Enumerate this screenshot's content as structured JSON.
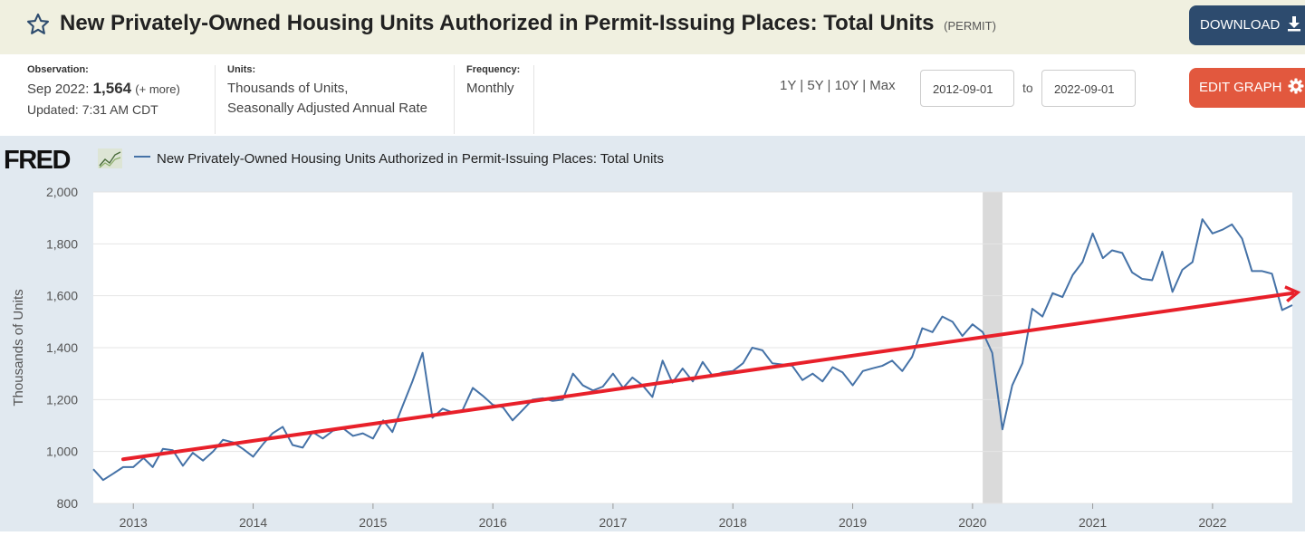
{
  "header": {
    "title": "New Privately-Owned Housing Units Authorized in Permit-Issuing Places: Total Units",
    "series_code": "(PERMIT)",
    "download_label": "DOWNLOAD",
    "edit_label": "EDIT GRAPH"
  },
  "observation": {
    "label": "Observation:",
    "date": "Sep 2022:",
    "value": "1,564",
    "more": "(+ more)",
    "updated": "Updated: 7:31 AM CDT"
  },
  "units": {
    "label": "Units:",
    "line1": "Thousands of Units,",
    "line2": "Seasonally Adjusted Annual Rate"
  },
  "frequency": {
    "label": "Frequency:",
    "value": "Monthly"
  },
  "range": {
    "options": [
      "1Y",
      "5Y",
      "10Y",
      "Max"
    ],
    "start": "2012-09-01",
    "to_label": "to",
    "end": "2022-09-01"
  },
  "logo": {
    "text": "FRED"
  },
  "colors": {
    "series": "#4572a7",
    "trend": "#e8202a",
    "recession": "#dadada",
    "edit": "#e2583e",
    "download": "#2d4b6e"
  },
  "chart_data": {
    "type": "line",
    "legend": "New Privately-Owned Housing Units Authorized in Permit-Issuing Places: Total Units",
    "ylabel": "Thousands of Units",
    "ylim": [
      800,
      2000
    ],
    "yticks": [
      800,
      1000,
      1200,
      1400,
      1600,
      1800,
      2000
    ],
    "ytick_labels": [
      "800",
      "1,000",
      "1,200",
      "1,400",
      "1,600",
      "1,800",
      "2,000"
    ],
    "xlim": [
      "2012-09-01",
      "2022-09-01"
    ],
    "xticks": [
      "2013-01-01",
      "2014-01-01",
      "2015-01-01",
      "2016-01-01",
      "2017-01-01",
      "2018-01-01",
      "2019-01-01",
      "2020-01-01",
      "2021-01-01",
      "2022-01-01"
    ],
    "xtick_labels": [
      "2013",
      "2014",
      "2015",
      "2016",
      "2017",
      "2018",
      "2019",
      "2020",
      "2021",
      "2022"
    ],
    "recession": [
      "2020-02-01",
      "2020-04-01"
    ],
    "trend_line": {
      "from": {
        "x": "2012-12-01",
        "y": 970
      },
      "to": {
        "x": "2022-09-01",
        "y": 1610
      }
    },
    "series": [
      {
        "name": "New Privately-Owned Housing Units Authorized in Permit-Issuing Places: Total Units",
        "start": "2012-09-01",
        "frequency": "monthly",
        "values": [
          932,
          890,
          915,
          940,
          940,
          975,
          940,
          1010,
          1005,
          945,
          995,
          965,
          1000,
          1045,
          1035,
          1010,
          980,
          1030,
          1070,
          1095,
          1025,
          1015,
          1075,
          1050,
          1080,
          1090,
          1060,
          1070,
          1050,
          1120,
          1075,
          1175,
          1270,
          1380,
          1130,
          1165,
          1150,
          1160,
          1245,
          1215,
          1180,
          1170,
          1120,
          1160,
          1200,
          1205,
          1195,
          1200,
          1300,
          1255,
          1235,
          1250,
          1300,
          1245,
          1285,
          1255,
          1210,
          1350,
          1265,
          1320,
          1270,
          1345,
          1290,
          1305,
          1310,
          1340,
          1400,
          1390,
          1340,
          1335,
          1330,
          1275,
          1300,
          1270,
          1325,
          1305,
          1255,
          1310,
          1320,
          1330,
          1350,
          1310,
          1365,
          1475,
          1460,
          1520,
          1500,
          1445,
          1490,
          1460,
          1380,
          1085,
          1255,
          1340,
          1550,
          1520,
          1610,
          1595,
          1680,
          1730,
          1840,
          1745,
          1775,
          1765,
          1690,
          1665,
          1660,
          1770,
          1615,
          1700,
          1730,
          1895,
          1840,
          1855,
          1875,
          1820,
          1695,
          1695,
          1685,
          1545,
          1564
        ]
      }
    ]
  }
}
